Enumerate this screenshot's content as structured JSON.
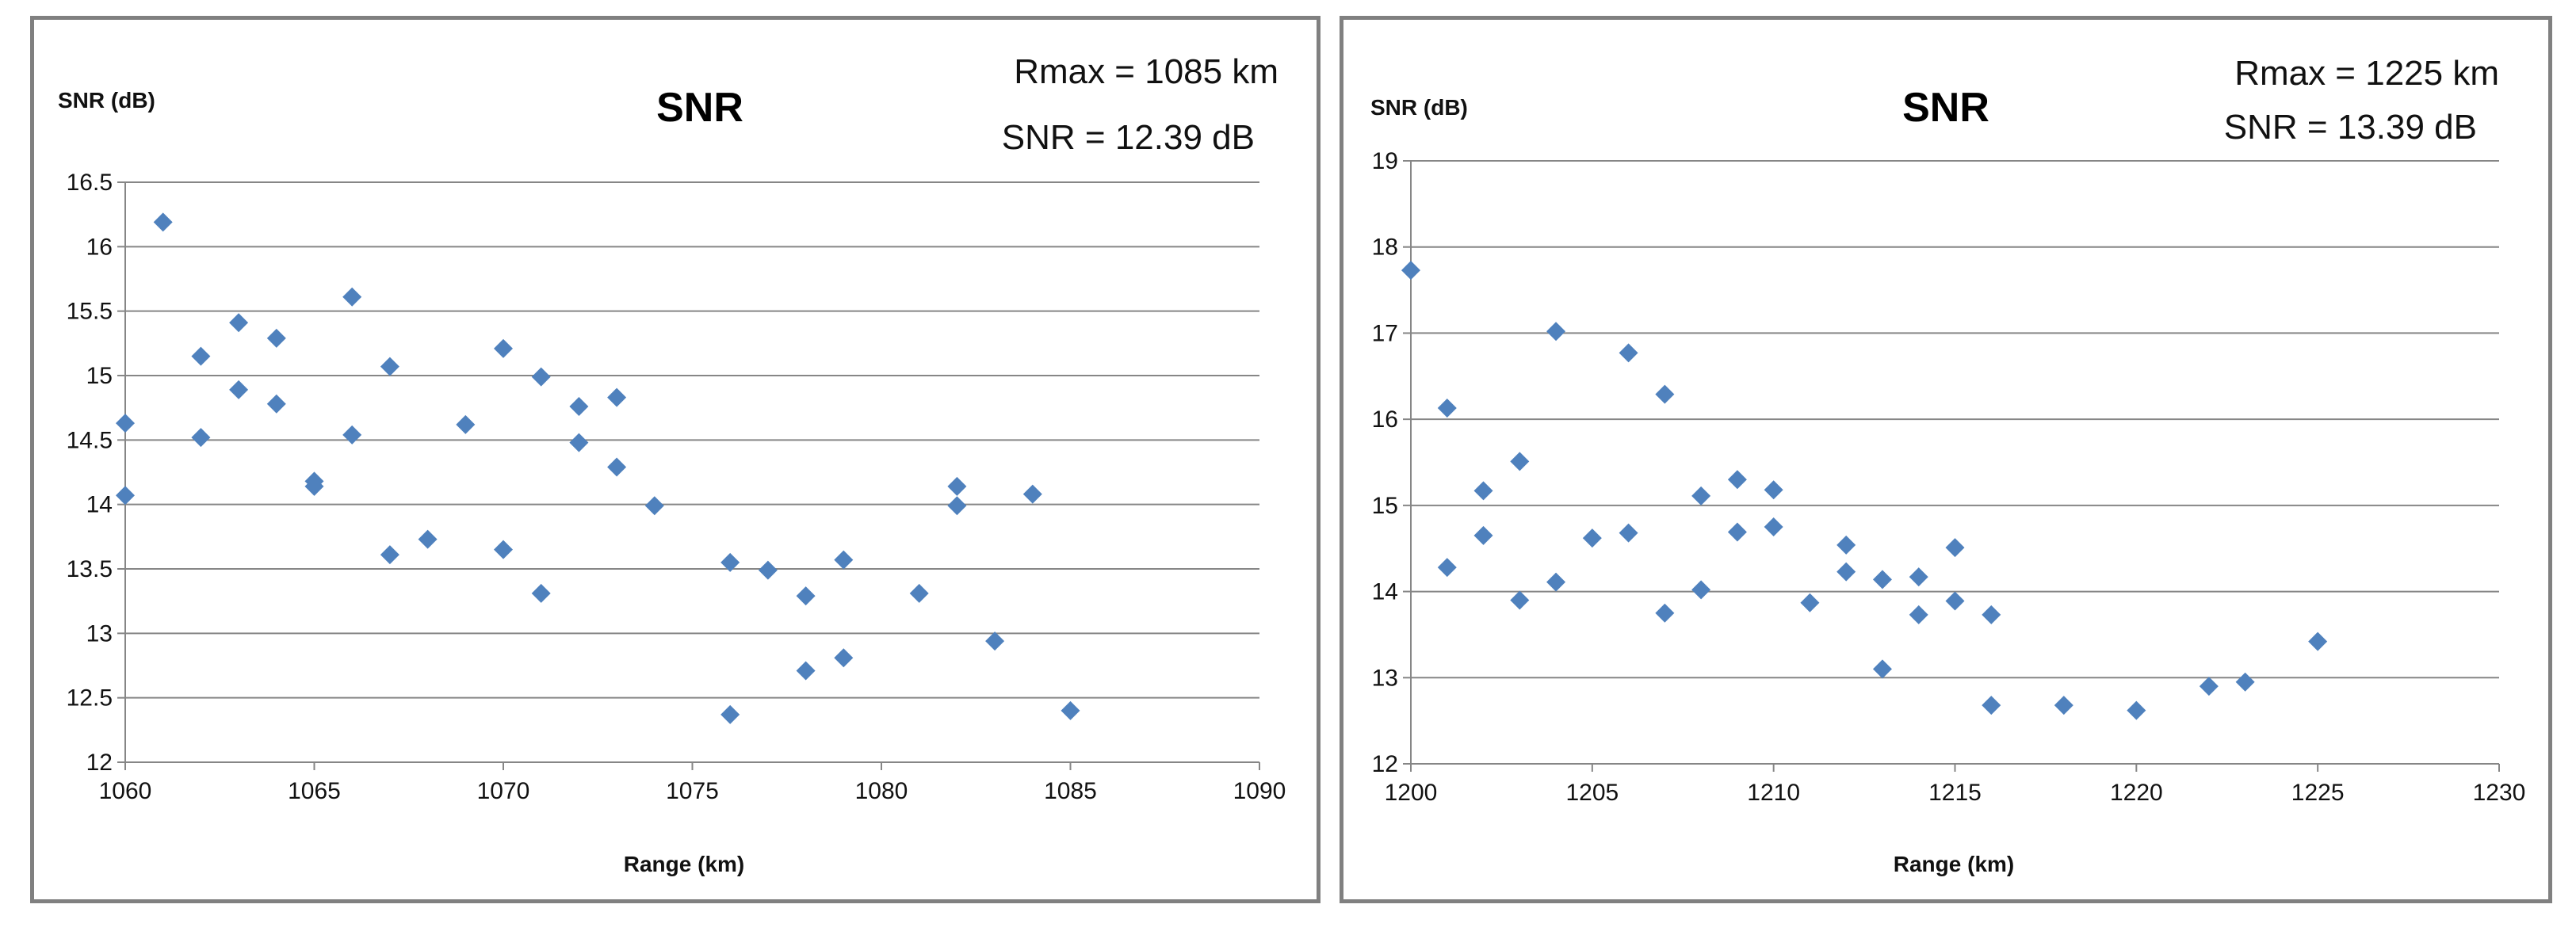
{
  "colors": {
    "marker": "#4F81BD",
    "grid": "#868686",
    "axis": "#868686",
    "frame": "#808080"
  },
  "chart_data": [
    {
      "type": "scatter",
      "title": "SNR",
      "ylabel": "SNR (dB)",
      "xlabel": "Range (km)",
      "annotations": [
        "Rmax = 1085 km",
        "SNR = 12.39 dB"
      ],
      "xlim": [
        1060,
        1090
      ],
      "ylim": [
        12,
        16.5
      ],
      "xticks": [
        "1060",
        "1065",
        "1070",
        "1075",
        "1080",
        "1085",
        "1090"
      ],
      "yticks": [
        "12",
        "12.5",
        "13",
        "13.5",
        "14",
        "14.5",
        "15",
        "15.5",
        "16",
        "16.5"
      ],
      "points": [
        [
          1060,
          14.63
        ],
        [
          1060,
          14.07
        ],
        [
          1061,
          16.19
        ],
        [
          1062,
          15.15
        ],
        [
          1062,
          14.52
        ],
        [
          1063,
          15.41
        ],
        [
          1063,
          14.89
        ],
        [
          1064,
          15.29
        ],
        [
          1064,
          14.78
        ],
        [
          1065,
          14.18
        ],
        [
          1065,
          14.14
        ],
        [
          1066,
          15.61
        ],
        [
          1066,
          14.54
        ],
        [
          1067,
          15.07
        ],
        [
          1067,
          13.61
        ],
        [
          1068,
          13.73
        ],
        [
          1069,
          14.62
        ],
        [
          1070,
          15.21
        ],
        [
          1070,
          13.65
        ],
        [
          1071,
          14.99
        ],
        [
          1071,
          13.31
        ],
        [
          1072,
          14.76
        ],
        [
          1072,
          14.48
        ],
        [
          1073,
          14.83
        ],
        [
          1073,
          14.29
        ],
        [
          1074,
          13.99
        ],
        [
          1076,
          13.55
        ],
        [
          1076,
          12.37
        ],
        [
          1077,
          13.49
        ],
        [
          1078,
          13.29
        ],
        [
          1078,
          12.71
        ],
        [
          1079,
          13.57
        ],
        [
          1079,
          12.81
        ],
        [
          1081,
          13.31
        ],
        [
          1082,
          14.14
        ],
        [
          1082,
          13.99
        ],
        [
          1083,
          12.94
        ],
        [
          1084,
          14.08
        ],
        [
          1085,
          12.4
        ]
      ]
    },
    {
      "type": "scatter",
      "title": "SNR",
      "ylabel": "SNR (dB)",
      "xlabel": "Range (km)",
      "annotations": [
        "Rmax = 1225 km",
        "SNR = 13.39 dB"
      ],
      "xlim": [
        1200,
        1230
      ],
      "ylim": [
        12,
        19
      ],
      "xticks": [
        "1200",
        "1205",
        "1210",
        "1215",
        "1220",
        "1225",
        "1230"
      ],
      "yticks": [
        "12",
        "13",
        "14",
        "15",
        "16",
        "17",
        "18",
        "19"
      ],
      "points": [
        [
          1200,
          17.73
        ],
        [
          1201,
          16.13
        ],
        [
          1201,
          14.28
        ],
        [
          1202,
          15.17
        ],
        [
          1202,
          14.65
        ],
        [
          1203,
          15.51
        ],
        [
          1203,
          13.9
        ],
        [
          1204,
          17.02
        ],
        [
          1204,
          14.11
        ],
        [
          1205,
          14.62
        ],
        [
          1206,
          16.77
        ],
        [
          1206,
          14.68
        ],
        [
          1207,
          16.29
        ],
        [
          1207,
          13.75
        ],
        [
          1208,
          15.11
        ],
        [
          1208,
          14.02
        ],
        [
          1209,
          15.3
        ],
        [
          1209,
          14.69
        ],
        [
          1210,
          15.18
        ],
        [
          1210,
          14.75
        ],
        [
          1211,
          13.87
        ],
        [
          1212,
          14.54
        ],
        [
          1212,
          14.23
        ],
        [
          1213,
          14.14
        ],
        [
          1213,
          13.1
        ],
        [
          1214,
          14.17
        ],
        [
          1214,
          13.73
        ],
        [
          1215,
          14.51
        ],
        [
          1215,
          13.89
        ],
        [
          1216,
          13.73
        ],
        [
          1216,
          12.68
        ],
        [
          1218,
          12.68
        ],
        [
          1220,
          12.62
        ],
        [
          1222,
          12.9
        ],
        [
          1223,
          12.95
        ],
        [
          1225,
          13.42
        ]
      ]
    }
  ]
}
